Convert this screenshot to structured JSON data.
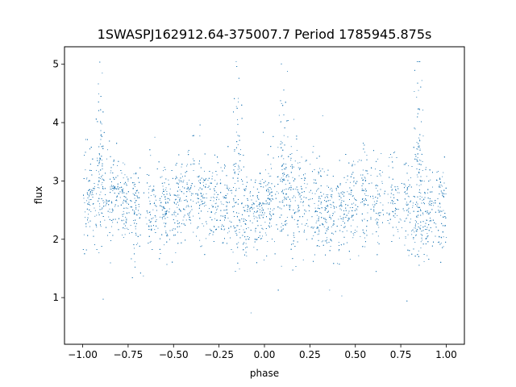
{
  "chart_data": {
    "type": "scatter",
    "title": "1SWASPJ162912.64-375007.7 Period 1785945.875s",
    "xlabel": "phase",
    "ylabel": "flux",
    "xlim": [
      -1.1,
      1.1
    ],
    "ylim": [
      0.2,
      5.3
    ],
    "xticks": [
      -1.0,
      -0.75,
      -0.5,
      -0.25,
      0.0,
      0.25,
      0.5,
      0.75,
      1.0
    ],
    "xtick_labels": [
      "−1.00",
      "−0.75",
      "−0.50",
      "−0.25",
      "0.00",
      "0.25",
      "0.50",
      "0.75",
      "1.00"
    ],
    "yticks": [
      1,
      2,
      3,
      4,
      5
    ],
    "ytick_labels": [
      "1",
      "2",
      "3",
      "4",
      "5"
    ],
    "grid": false,
    "marker_color": "#1f77b4",
    "point_count": 6000,
    "base_flux": 2.6,
    "folded_period_phase": 1.0,
    "cluster_phases": [
      -0.97,
      -0.9,
      -0.84,
      -0.78,
      -0.71,
      -0.62,
      -0.55,
      -0.48,
      -0.42,
      -0.35,
      -0.29,
      -0.22,
      -0.16,
      -0.1,
      -0.03,
      0.03,
      0.1,
      0.16,
      0.22,
      0.29,
      0.35,
      0.42,
      0.48,
      0.55,
      0.62,
      0.71,
      0.78,
      0.84,
      0.9,
      0.97
    ],
    "spike_phases": [
      -0.9,
      -0.15,
      0.1,
      0.85
    ]
  }
}
